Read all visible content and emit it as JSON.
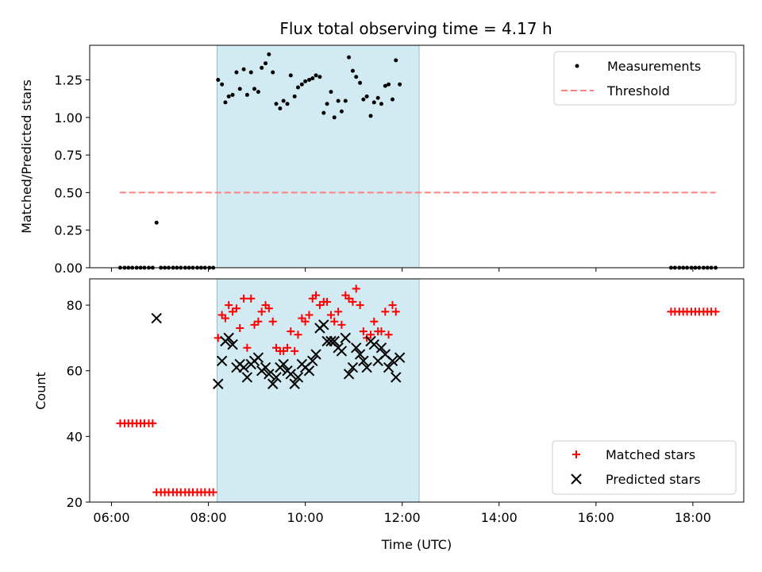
{
  "chart_data": {
    "title": "Flux total observing time = 4.17 h",
    "xlabel": "Time (UTC)",
    "x_ticks": [
      "06:00",
      "08:00",
      "10:00",
      "12:00",
      "14:00",
      "16:00",
      "18:00"
    ],
    "x_tick_hours": [
      6,
      8,
      10,
      12,
      14,
      16,
      18
    ],
    "xlim_hours": [
      5.55,
      19.05
    ],
    "observing_window_hours": [
      8.18,
      12.35
    ],
    "observing_window_color": "#add8e6",
    "panels": [
      {
        "type": "scatter",
        "ylabel": "Matched/Predicted stars",
        "ylim": [
          0,
          1.48
        ],
        "y_ticks": [
          "0.00",
          "0.25",
          "0.50",
          "0.75",
          "1.00",
          "1.25"
        ],
        "y_tick_values": [
          0,
          0.25,
          0.5,
          0.75,
          1.0,
          1.25
        ],
        "legend": [
          "Measurements",
          "Threshold"
        ],
        "legend_position": "upper right",
        "threshold": {
          "name": "Threshold",
          "y": 0.5,
          "x_range": [
            6.17,
            18.47
          ],
          "color": "#ff7f7f",
          "style": "dashed"
        },
        "series": [
          {
            "name": "Measurements",
            "color": "#000000",
            "marker": "dot",
            "points": [
              [
                6.18,
                0
              ],
              [
                6.27,
                0
              ],
              [
                6.35,
                0
              ],
              [
                6.43,
                0
              ],
              [
                6.52,
                0
              ],
              [
                6.6,
                0
              ],
              [
                6.68,
                0
              ],
              [
                6.77,
                0
              ],
              [
                6.85,
                0
              ],
              [
                6.93,
                0.3
              ],
              [
                7.02,
                0
              ],
              [
                7.1,
                0
              ],
              [
                7.18,
                0
              ],
              [
                7.27,
                0
              ],
              [
                7.35,
                0
              ],
              [
                7.43,
                0
              ],
              [
                7.52,
                0
              ],
              [
                7.6,
                0
              ],
              [
                7.68,
                0
              ],
              [
                7.77,
                0
              ],
              [
                7.85,
                0
              ],
              [
                7.93,
                0
              ],
              [
                8.02,
                0
              ],
              [
                8.1,
                0
              ],
              [
                8.2,
                1.25
              ],
              [
                8.28,
                1.22
              ],
              [
                8.35,
                1.1
              ],
              [
                8.42,
                1.14
              ],
              [
                8.5,
                1.15
              ],
              [
                8.58,
                1.3
              ],
              [
                8.65,
                1.19
              ],
              [
                8.73,
                1.32
              ],
              [
                8.8,
                1.15
              ],
              [
                8.88,
                1.3
              ],
              [
                8.95,
                1.19
              ],
              [
                9.03,
                1.17
              ],
              [
                9.1,
                1.33
              ],
              [
                9.18,
                1.36
              ],
              [
                9.25,
                1.42
              ],
              [
                9.33,
                1.3
              ],
              [
                9.4,
                1.09
              ],
              [
                9.48,
                1.06
              ],
              [
                9.55,
                1.11
              ],
              [
                9.63,
                1.09
              ],
              [
                9.7,
                1.28
              ],
              [
                9.78,
                1.14
              ],
              [
                9.85,
                1.2
              ],
              [
                9.93,
                1.22
              ],
              [
                10.0,
                1.24
              ],
              [
                10.08,
                1.25
              ],
              [
                10.15,
                1.26
              ],
              [
                10.22,
                1.28
              ],
              [
                10.3,
                1.27
              ],
              [
                10.38,
                1.03
              ],
              [
                10.45,
                1.09
              ],
              [
                10.53,
                1.17
              ],
              [
                10.6,
                1.0
              ],
              [
                10.68,
                1.11
              ],
              [
                10.75,
                1.04
              ],
              [
                10.83,
                1.11
              ],
              [
                10.9,
                1.4
              ],
              [
                10.98,
                1.31
              ],
              [
                11.05,
                1.27
              ],
              [
                11.13,
                1.23
              ],
              [
                11.2,
                1.12
              ],
              [
                11.27,
                1.14
              ],
              [
                11.35,
                1.01
              ],
              [
                11.42,
                1.1
              ],
              [
                11.5,
                1.13
              ],
              [
                11.57,
                1.09
              ],
              [
                11.65,
                1.21
              ],
              [
                11.72,
                1.22
              ],
              [
                11.8,
                1.12
              ],
              [
                11.87,
                1.38
              ],
              [
                11.95,
                1.22
              ],
              [
                17.55,
                0
              ],
              [
                17.63,
                0
              ],
              [
                17.72,
                0
              ],
              [
                17.8,
                0
              ],
              [
                17.88,
                0
              ],
              [
                17.97,
                0
              ],
              [
                18.05,
                0
              ],
              [
                18.13,
                0
              ],
              [
                18.22,
                0
              ],
              [
                18.3,
                0
              ],
              [
                18.38,
                0
              ],
              [
                18.47,
                0
              ]
            ]
          }
        ]
      },
      {
        "type": "scatter",
        "ylabel": "Count",
        "ylim": [
          20,
          88
        ],
        "y_ticks": [
          "20",
          "40",
          "60",
          "80"
        ],
        "y_tick_values": [
          20,
          40,
          60,
          80
        ],
        "legend": [
          "Matched stars",
          "Predicted stars"
        ],
        "legend_position": "lower right",
        "series": [
          {
            "name": "Matched stars",
            "color": "#ff0000",
            "marker": "plus",
            "points": [
              [
                6.18,
                44
              ],
              [
                6.27,
                44
              ],
              [
                6.35,
                44
              ],
              [
                6.43,
                44
              ],
              [
                6.52,
                44
              ],
              [
                6.6,
                44
              ],
              [
                6.68,
                44
              ],
              [
                6.77,
                44
              ],
              [
                6.85,
                44
              ],
              [
                6.93,
                23
              ],
              [
                7.02,
                23
              ],
              [
                7.1,
                23
              ],
              [
                7.18,
                23
              ],
              [
                7.27,
                23
              ],
              [
                7.35,
                23
              ],
              [
                7.43,
                23
              ],
              [
                7.52,
                23
              ],
              [
                7.6,
                23
              ],
              [
                7.68,
                23
              ],
              [
                7.77,
                23
              ],
              [
                7.85,
                23
              ],
              [
                7.93,
                23
              ],
              [
                8.02,
                23
              ],
              [
                8.1,
                23
              ],
              [
                8.2,
                70
              ],
              [
                8.28,
                77
              ],
              [
                8.35,
                76
              ],
              [
                8.42,
                80
              ],
              [
                8.5,
                78
              ],
              [
                8.58,
                79
              ],
              [
                8.65,
                73
              ],
              [
                8.73,
                82
              ],
              [
                8.8,
                67
              ],
              [
                8.88,
                82
              ],
              [
                8.95,
                74
              ],
              [
                9.03,
                75
              ],
              [
                9.1,
                78
              ],
              [
                9.18,
                80
              ],
              [
                9.25,
                79
              ],
              [
                9.33,
                75
              ],
              [
                9.4,
                67
              ],
              [
                9.48,
                66
              ],
              [
                9.55,
                66
              ],
              [
                9.63,
                67
              ],
              [
                9.7,
                72
              ],
              [
                9.78,
                66
              ],
              [
                9.85,
                71
              ],
              [
                9.93,
                76
              ],
              [
                10.0,
                75
              ],
              [
                10.08,
                77
              ],
              [
                10.15,
                82
              ],
              [
                10.22,
                83
              ],
              [
                10.3,
                80
              ],
              [
                10.38,
                81
              ],
              [
                10.45,
                81
              ],
              [
                10.53,
                77
              ],
              [
                10.6,
                75
              ],
              [
                10.68,
                78
              ],
              [
                10.75,
                74
              ],
              [
                10.83,
                83
              ],
              [
                10.9,
                82
              ],
              [
                10.98,
                81
              ],
              [
                11.05,
                85
              ],
              [
                11.13,
                80
              ],
              [
                11.2,
                72
              ],
              [
                11.27,
                70
              ],
              [
                11.35,
                71
              ],
              [
                11.42,
                75
              ],
              [
                11.5,
                72
              ],
              [
                11.57,
                72
              ],
              [
                11.65,
                78
              ],
              [
                11.72,
                71
              ],
              [
                11.8,
                80
              ],
              [
                11.87,
                78
              ],
              [
                17.55,
                78
              ],
              [
                17.63,
                78
              ],
              [
                17.72,
                78
              ],
              [
                17.8,
                78
              ],
              [
                17.88,
                78
              ],
              [
                17.97,
                78
              ],
              [
                18.05,
                78
              ],
              [
                18.13,
                78
              ],
              [
                18.22,
                78
              ],
              [
                18.3,
                78
              ],
              [
                18.38,
                78
              ],
              [
                18.47,
                78
              ]
            ]
          },
          {
            "name": "Predicted stars",
            "color": "#000000",
            "marker": "x",
            "points": [
              [
                6.93,
                76
              ],
              [
                8.2,
                56
              ],
              [
                8.28,
                63
              ],
              [
                8.35,
                69
              ],
              [
                8.42,
                70
              ],
              [
                8.5,
                68
              ],
              [
                8.58,
                61
              ],
              [
                8.65,
                62
              ],
              [
                8.73,
                61
              ],
              [
                8.8,
                58
              ],
              [
                8.88,
                62
              ],
              [
                8.95,
                63
              ],
              [
                9.03,
                64
              ],
              [
                9.1,
                60
              ],
              [
                9.18,
                61
              ],
              [
                9.25,
                59
              ],
              [
                9.33,
                56
              ],
              [
                9.4,
                58
              ],
              [
                9.48,
                61
              ],
              [
                9.55,
                62
              ],
              [
                9.63,
                60
              ],
              [
                9.7,
                59
              ],
              [
                9.78,
                56
              ],
              [
                9.85,
                58
              ],
              [
                9.93,
                62
              ],
              [
                10.0,
                61
              ],
              [
                10.08,
                60
              ],
              [
                10.15,
                63
              ],
              [
                10.22,
                65
              ],
              [
                10.3,
                73
              ],
              [
                10.38,
                74
              ],
              [
                10.45,
                69
              ],
              [
                10.53,
                69
              ],
              [
                10.6,
                69
              ],
              [
                10.68,
                67
              ],
              [
                10.75,
                66
              ],
              [
                10.83,
                70
              ],
              [
                10.9,
                59
              ],
              [
                10.98,
                61
              ],
              [
                11.05,
                67
              ],
              [
                11.13,
                65
              ],
              [
                11.2,
                63
              ],
              [
                11.27,
                61
              ],
              [
                11.35,
                69
              ],
              [
                11.42,
                68
              ],
              [
                11.5,
                63
              ],
              [
                11.57,
                67
              ],
              [
                11.65,
                65
              ],
              [
                11.72,
                61
              ],
              [
                11.8,
                63
              ],
              [
                11.87,
                58
              ],
              [
                11.95,
                64
              ]
            ]
          }
        ]
      }
    ]
  }
}
